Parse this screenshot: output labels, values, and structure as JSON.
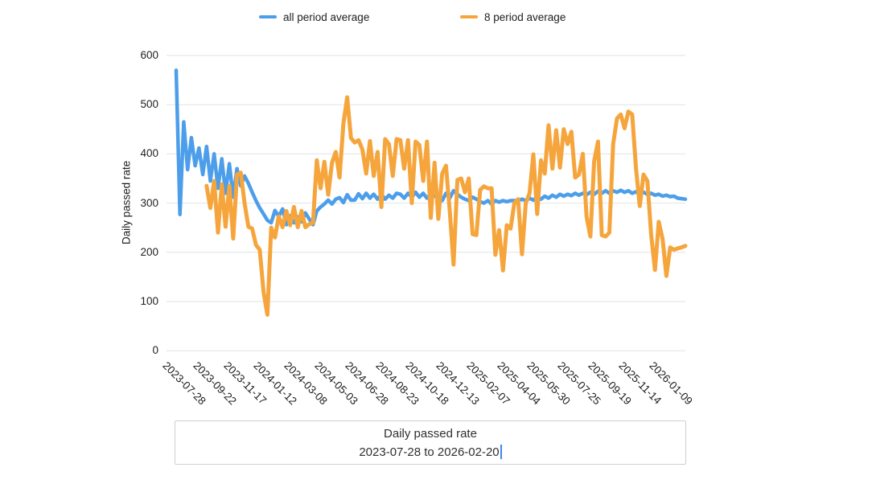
{
  "legend": [
    {
      "label": "all period average",
      "color": "#4D9EEA"
    },
    {
      "label": "8 period average",
      "color": "#F5A53C"
    }
  ],
  "y_axis": {
    "title": "Daily passed rate",
    "ticks": [
      0,
      100,
      200,
      300,
      400,
      500,
      600
    ]
  },
  "x_axis": {
    "tick_labels": [
      "2023-07-28",
      "2023-09-22",
      "2023-11-17",
      "2024-01-12",
      "2024-03-08",
      "2024-05-03",
      "2024-06-28",
      "2024-08-23",
      "2024-10-18",
      "2024-12-13",
      "2025-02-07",
      "2025-04-04",
      "2025-05-30",
      "2025-07-25",
      "2025-09-19",
      "2025-11-14",
      "2026-01-09"
    ],
    "tick_every_n_points": 8
  },
  "caption": {
    "line1": "Daily passed rate",
    "line2": "2023-07-28 to 2026-02-20"
  },
  "chart_data": {
    "type": "line",
    "title": "Daily passed rate",
    "x_start": "2023-07-28",
    "x_end": "2026-02-20",
    "frequency": "weekly",
    "n_points": 135,
    "ylabel": "Daily passed rate",
    "ylim": [
      0,
      600
    ],
    "grid": true,
    "gridline_color": "#e2e2e2",
    "legend_position": "top",
    "series": [
      {
        "name": "all period average",
        "color": "#4D9EEA",
        "values": [
          570,
          277,
          465,
          368,
          433,
          376,
          412,
          358,
          415,
          345,
          400,
          330,
          390,
          320,
          380,
          312,
          370,
          335,
          355,
          340,
          322,
          305,
          290,
          278,
          265,
          260,
          285,
          273,
          288,
          256,
          274,
          260,
          272,
          262,
          280,
          268,
          256,
          284,
          292,
          298,
          306,
          298,
          308,
          311,
          301,
          317,
          306,
          306,
          319,
          309,
          320,
          310,
          318,
          308,
          318,
          308,
          316,
          310,
          320,
          318,
          310,
          320,
          312,
          322,
          312,
          320,
          310,
          318,
          314,
          318,
          305,
          320,
          310,
          325,
          318,
          312,
          308,
          305,
          312,
          308,
          303,
          300,
          305,
          298,
          305,
          302,
          305,
          303,
          305,
          305,
          305,
          308,
          305,
          310,
          306,
          312,
          308,
          314,
          310,
          316,
          312,
          318,
          314,
          318,
          315,
          320,
          316,
          320,
          317,
          322,
          318,
          324,
          320,
          325,
          320,
          325,
          322,
          326,
          322,
          325,
          320,
          323,
          318,
          322,
          318,
          320,
          316,
          318,
          314,
          316,
          313,
          314,
          310,
          309,
          308
        ]
      },
      {
        "name": "8 period average",
        "color": "#F5A53C",
        "values": [
          null,
          null,
          null,
          null,
          null,
          null,
          null,
          null,
          335,
          290,
          345,
          240,
          338,
          252,
          335,
          228,
          358,
          362,
          300,
          252,
          248,
          215,
          205,
          120,
          73,
          250,
          230,
          273,
          251,
          284,
          255,
          292,
          251,
          284,
          251,
          257,
          260,
          387,
          330,
          384,
          317,
          382,
          404,
          352,
          462,
          515,
          432,
          423,
          428,
          409,
          360,
          426,
          355,
          404,
          292,
          430,
          420,
          355,
          430,
          428,
          370,
          428,
          300,
          425,
          418,
          345,
          425,
          270,
          382,
          268,
          360,
          376,
          284,
          175,
          347,
          350,
          322,
          350,
          237,
          235,
          327,
          334,
          330,
          330,
          195,
          245,
          163,
          255,
          248,
          300,
          308,
          196,
          300,
          320,
          399,
          278,
          387,
          360,
          458,
          370,
          448,
          372,
          450,
          420,
          445,
          352,
          358,
          400,
          272,
          232,
          385,
          425,
          235,
          232,
          240,
          420,
          472,
          480,
          452,
          486,
          480,
          371,
          294,
          358,
          345,
          235,
          164,
          262,
          227,
          152,
          210,
          205,
          208,
          210,
          213
        ]
      }
    ]
  }
}
